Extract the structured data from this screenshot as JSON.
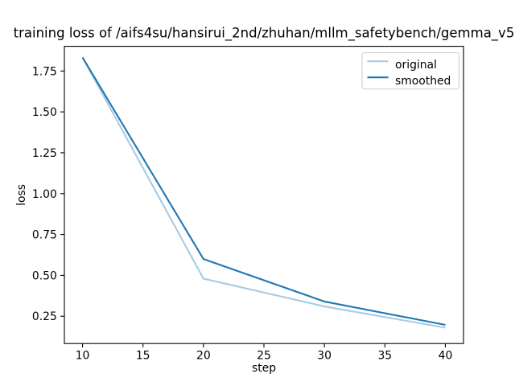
{
  "chart_data": {
    "type": "line",
    "title": "training loss of /aifs4su/hansirui_2nd/zhuhan/mllm_safetybench/gemma_v5",
    "xlabel": "step",
    "ylabel": "loss",
    "x": [
      10,
      20,
      30,
      40
    ],
    "series": [
      {
        "name": "original",
        "color": "#a8cbe2",
        "values": [
          1.833,
          0.48,
          0.31,
          0.18
        ]
      },
      {
        "name": "smoothed",
        "color": "#1f77b4",
        "values": [
          1.833,
          0.6,
          0.34,
          0.197
        ]
      }
    ],
    "xlim": [
      8.5,
      41.5
    ],
    "ylim": [
      0.083,
      1.901
    ],
    "xticks": [
      "10",
      "15",
      "20",
      "25",
      "30",
      "35",
      "40"
    ],
    "yticks": [
      "0.25",
      "0.50",
      "0.75",
      "1.00",
      "1.25",
      "1.50",
      "1.75"
    ],
    "legend": {
      "position": "upper right",
      "entries": [
        "original",
        "smoothed"
      ]
    },
    "grid": false,
    "axis_color": "#000000",
    "legend_border_color": "#cccccc",
    "background": "#ffffff"
  }
}
